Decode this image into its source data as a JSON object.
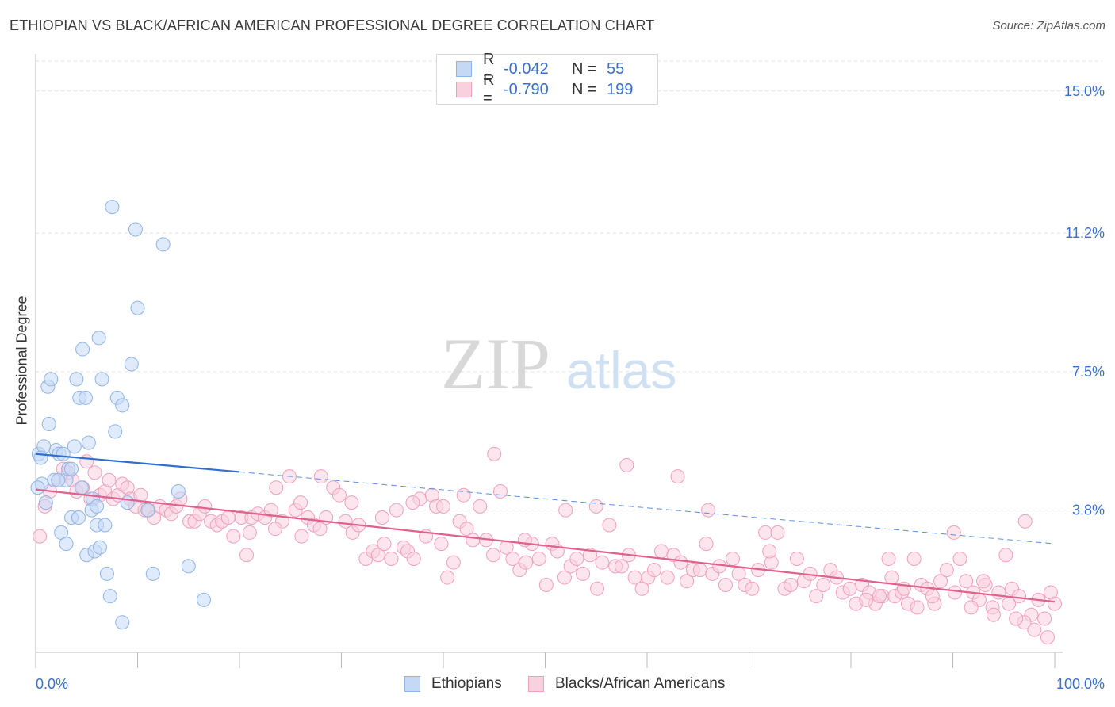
{
  "chart_data": {
    "type": "scatter",
    "title": "ETHIOPIAN VS BLACK/AFRICAN AMERICAN PROFESSIONAL DEGREE CORRELATION CHART",
    "source": "Source: ZipAtlas.com",
    "xlabel": "",
    "ylabel": "Professional Degree",
    "xlim": [
      0,
      100
    ],
    "ylim": [
      0,
      15.8
    ],
    "x_tick_labels": [
      "0.0%",
      "100.0%"
    ],
    "y_ticks": [
      3.8,
      7.5,
      11.2,
      15.0
    ],
    "y_tick_labels": [
      "3.8%",
      "7.5%",
      "11.2%",
      "15.0%"
    ],
    "grid": "dashed horizontal",
    "watermark": "ZIPatlas",
    "legend": [
      {
        "name": "Ethiopians",
        "r_label": "R =",
        "r": "-0.042",
        "n_label": "N =",
        "n": "55",
        "color": "#8fb4e8",
        "fill": "#c5d9f5"
      },
      {
        "name": "Blacks/African Americans",
        "r_label": "R =",
        "r": "-0.790",
        "n_label": "N =",
        "n": "199",
        "color": "#f0a0bc",
        "fill": "#f9d0de"
      }
    ],
    "series": [
      {
        "name": "Ethiopians",
        "trend": {
          "x0": 0,
          "y0": 5.3,
          "x1": 100,
          "y1": 2.9,
          "solid_until": 20
        },
        "points": [
          [
            0.3,
            5.3
          ],
          [
            0.8,
            5.5
          ],
          [
            0.5,
            5.2
          ],
          [
            1.2,
            7.1
          ],
          [
            1.5,
            7.3
          ],
          [
            1.3,
            6.1
          ],
          [
            1.8,
            4.6
          ],
          [
            2,
            5.4
          ],
          [
            2.3,
            5.3
          ],
          [
            2.7,
            5.3
          ],
          [
            3,
            4.6
          ],
          [
            3.2,
            4.9
          ],
          [
            3.5,
            4.9
          ],
          [
            3.8,
            5.5
          ],
          [
            4,
            7.3
          ],
          [
            4.3,
            6.8
          ],
          [
            4.6,
            8.1
          ],
          [
            4.9,
            6.8
          ],
          [
            5.2,
            5.6
          ],
          [
            5.6,
            4.1
          ],
          [
            6,
            3.4
          ],
          [
            6.2,
            8.4
          ],
          [
            6.5,
            7.3
          ],
          [
            7,
            2.1
          ],
          [
            7.3,
            1.5
          ],
          [
            7.5,
            11.9
          ],
          [
            7.8,
            5.9
          ],
          [
            8,
            6.8
          ],
          [
            8.5,
            6.6
          ],
          [
            8.5,
            0.8
          ],
          [
            9,
            4.0
          ],
          [
            9.4,
            7.7
          ],
          [
            9.8,
            11.3
          ],
          [
            10,
            9.2
          ],
          [
            11,
            3.8
          ],
          [
            11.5,
            2.1
          ],
          [
            12.5,
            10.9
          ],
          [
            14,
            4.3
          ],
          [
            15,
            2.3
          ],
          [
            16.5,
            1.4
          ],
          [
            2.5,
            3.2
          ],
          [
            3,
            2.9
          ],
          [
            3.5,
            3.6
          ],
          [
            4.2,
            3.6
          ],
          [
            4.5,
            4.4
          ],
          [
            5,
            2.6
          ],
          [
            5.5,
            3.8
          ],
          [
            6,
            3.9
          ],
          [
            5.8,
            2.7
          ],
          [
            6.3,
            2.8
          ],
          [
            6.8,
            3.4
          ],
          [
            2.2,
            4.6
          ],
          [
            1,
            4.0
          ],
          [
            0.6,
            4.5
          ],
          [
            0.2,
            4.4
          ]
        ]
      },
      {
        "name": "Blacks/African Americans",
        "trend": {
          "x0": 0,
          "y0": 4.35,
          "x1": 100,
          "y1": 1.35
        },
        "points": [
          [
            0.4,
            3.1
          ],
          [
            0.9,
            3.9
          ],
          [
            1.4,
            4.3
          ],
          [
            2.2,
            4.6
          ],
          [
            2.7,
            4.9
          ],
          [
            3.2,
            4.8
          ],
          [
            3.6,
            4.6
          ],
          [
            4.0,
            4.3
          ],
          [
            4.6,
            4.4
          ],
          [
            5.0,
            5.1
          ],
          [
            5.4,
            4.1
          ],
          [
            5.8,
            4.8
          ],
          [
            6.3,
            4.2
          ],
          [
            6.8,
            4.3
          ],
          [
            7.2,
            4.6
          ],
          [
            7.6,
            4.1
          ],
          [
            8.1,
            4.2
          ],
          [
            8.5,
            4.5
          ],
          [
            9.0,
            4.4
          ],
          [
            9.3,
            4.1
          ],
          [
            9.8,
            3.9
          ],
          [
            10.3,
            4.2
          ],
          [
            10.7,
            3.8
          ],
          [
            11.1,
            3.8
          ],
          [
            11.6,
            3.6
          ],
          [
            12.2,
            3.9
          ],
          [
            12.8,
            3.8
          ],
          [
            13.3,
            3.7
          ],
          [
            13.8,
            3.9
          ],
          [
            14.2,
            4.1
          ],
          [
            15.1,
            3.5
          ],
          [
            15.6,
            3.5
          ],
          [
            16.1,
            3.7
          ],
          [
            16.6,
            3.9
          ],
          [
            17.2,
            3.5
          ],
          [
            17.8,
            3.4
          ],
          [
            18.3,
            3.5
          ],
          [
            18.9,
            3.6
          ],
          [
            19.4,
            3.1
          ],
          [
            20.2,
            3.6
          ],
          [
            20.7,
            2.6
          ],
          [
            21.2,
            3.6
          ],
          [
            21.8,
            3.7
          ],
          [
            22.5,
            3.6
          ],
          [
            23.1,
            3.8
          ],
          [
            23.6,
            4.4
          ],
          [
            24.2,
            3.5
          ],
          [
            24.9,
            4.7
          ],
          [
            25.5,
            3.8
          ],
          [
            26.1,
            3.1
          ],
          [
            26.7,
            3.6
          ],
          [
            27.3,
            3.4
          ],
          [
            27.9,
            3.3
          ],
          [
            28.5,
            3.6
          ],
          [
            29.2,
            4.4
          ],
          [
            29.8,
            4.2
          ],
          [
            30.4,
            3.5
          ],
          [
            31.1,
            3.2
          ],
          [
            31.7,
            3.4
          ],
          [
            32.4,
            2.5
          ],
          [
            33.1,
            2.7
          ],
          [
            33.6,
            2.6
          ],
          [
            34.2,
            2.9
          ],
          [
            34.9,
            2.5
          ],
          [
            35.4,
            3.8
          ],
          [
            36.1,
            2.8
          ],
          [
            36.5,
            2.7
          ],
          [
            37.1,
            2.5
          ],
          [
            37.7,
            4.1
          ],
          [
            38.3,
            3.1
          ],
          [
            38.9,
            4.2
          ],
          [
            39.3,
            3.9
          ],
          [
            39.8,
            2.9
          ],
          [
            40.4,
            2.0
          ],
          [
            41.0,
            2.4
          ],
          [
            41.6,
            3.5
          ],
          [
            42.3,
            3.3
          ],
          [
            42.9,
            3.0
          ],
          [
            43.6,
            3.9
          ],
          [
            44.2,
            3.0
          ],
          [
            44.9,
            2.6
          ],
          [
            45.6,
            4.3
          ],
          [
            46.2,
            2.8
          ],
          [
            46.8,
            2.5
          ],
          [
            47.5,
            2.2
          ],
          [
            48.1,
            2.4
          ],
          [
            48.7,
            2.9
          ],
          [
            49.4,
            2.5
          ],
          [
            50.1,
            1.8
          ],
          [
            50.7,
            2.9
          ],
          [
            51.2,
            2.7
          ],
          [
            51.9,
            2.0
          ],
          [
            52.5,
            2.3
          ],
          [
            53.1,
            2.5
          ],
          [
            53.7,
            2.1
          ],
          [
            54.4,
            2.6
          ],
          [
            55.1,
            1.7
          ],
          [
            55.6,
            2.4
          ],
          [
            56.3,
            3.4
          ],
          [
            56.9,
            2.3
          ],
          [
            57.5,
            2.3
          ],
          [
            58.2,
            2.6
          ],
          [
            58.8,
            2.0
          ],
          [
            59.5,
            1.7
          ],
          [
            60.1,
            2.0
          ],
          [
            60.7,
            2.2
          ],
          [
            61.4,
            2.7
          ],
          [
            62.0,
            2.0
          ],
          [
            62.6,
            2.6
          ],
          [
            63.3,
            2.4
          ],
          [
            63.9,
            1.9
          ],
          [
            64.5,
            2.2
          ],
          [
            65.2,
            2.2
          ],
          [
            65.8,
            2.9
          ],
          [
            66.4,
            2.1
          ],
          [
            67.1,
            2.3
          ],
          [
            67.7,
            1.8
          ],
          [
            68.4,
            2.5
          ],
          [
            69.0,
            2.1
          ],
          [
            69.6,
            1.8
          ],
          [
            70.3,
            1.7
          ],
          [
            70.9,
            2.2
          ],
          [
            71.6,
            3.2
          ],
          [
            72.2,
            2.4
          ],
          [
            72.8,
            3.2
          ],
          [
            73.5,
            1.7
          ],
          [
            74.1,
            1.8
          ],
          [
            74.7,
            2.5
          ],
          [
            75.4,
            1.9
          ],
          [
            76.0,
            2.1
          ],
          [
            76.6,
            1.5
          ],
          [
            77.3,
            1.8
          ],
          [
            78.0,
            2.2
          ],
          [
            78.6,
            2.0
          ],
          [
            79.2,
            1.6
          ],
          [
            79.9,
            1.7
          ],
          [
            80.5,
            1.3
          ],
          [
            81.1,
            1.8
          ],
          [
            81.8,
            1.6
          ],
          [
            82.4,
            1.3
          ],
          [
            83.1,
            1.5
          ],
          [
            83.7,
            2.5
          ],
          [
            84.3,
            1.5
          ],
          [
            85.0,
            1.6
          ],
          [
            85.6,
            1.3
          ],
          [
            86.2,
            2.5
          ],
          [
            86.9,
            1.8
          ],
          [
            87.5,
            1.7
          ],
          [
            88.2,
            1.3
          ],
          [
            88.8,
            1.9
          ],
          [
            89.4,
            2.2
          ],
          [
            90.1,
            3.2
          ],
          [
            90.7,
            2.5
          ],
          [
            91.3,
            1.9
          ],
          [
            92.0,
            1.6
          ],
          [
            92.6,
            1.4
          ],
          [
            93.2,
            1.8
          ],
          [
            93.9,
            1.2
          ],
          [
            94.5,
            1.6
          ],
          [
            95.2,
            2.6
          ],
          [
            95.8,
            1.7
          ],
          [
            96.5,
            1.5
          ],
          [
            97.1,
            3.5
          ],
          [
            97.7,
            1.0
          ],
          [
            98.4,
            1.4
          ],
          [
            99.0,
            0.9
          ],
          [
            99.6,
            1.6
          ],
          [
            100.0,
            1.3
          ],
          [
            99.3,
            0.4
          ],
          [
            98.0,
            0.6
          ],
          [
            97.0,
            0.8
          ],
          [
            96.2,
            0.9
          ],
          [
            95.5,
            1.3
          ],
          [
            94.0,
            1.0
          ],
          [
            93.0,
            1.9
          ],
          [
            91.8,
            1.2
          ],
          [
            90.2,
            1.6
          ],
          [
            88.0,
            1.5
          ],
          [
            86.5,
            1.2
          ],
          [
            85.2,
            1.7
          ],
          [
            84.0,
            2.0
          ],
          [
            82.8,
            1.5
          ],
          [
            81.5,
            1.4
          ],
          [
            72.0,
            2.7
          ],
          [
            66.0,
            3.8
          ],
          [
            63.0,
            4.7
          ],
          [
            58.0,
            5.0
          ],
          [
            55.0,
            3.9
          ],
          [
            52.0,
            3.8
          ],
          [
            48.0,
            3.0
          ],
          [
            45.0,
            5.3
          ],
          [
            42.0,
            4.2
          ],
          [
            40.0,
            3.9
          ],
          [
            37.0,
            4.0
          ],
          [
            34.0,
            3.6
          ],
          [
            31.0,
            4.0
          ],
          [
            28.0,
            4.7
          ],
          [
            26.0,
            4.0
          ],
          [
            23.5,
            3.3
          ],
          [
            21.0,
            3.2
          ]
        ]
      }
    ]
  }
}
